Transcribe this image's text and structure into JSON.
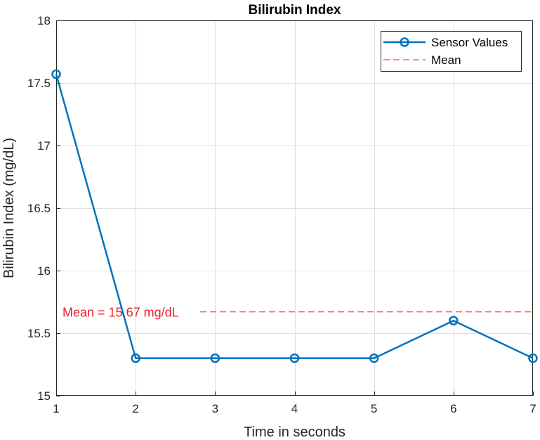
{
  "colors": {
    "series": "#0072bd",
    "mean": "#e8202a",
    "grid": "#dfdfdf",
    "axis": "#262626"
  },
  "chart_data": {
    "type": "line",
    "title": "Bilirubin Index",
    "xlabel": "Time in seconds",
    "ylabel": "Bilirubin Index (mg/dL)",
    "xlim": [
      1,
      7
    ],
    "ylim": [
      15,
      18
    ],
    "x_ticks": [
      1,
      2,
      3,
      4,
      5,
      6,
      7
    ],
    "y_ticks": [
      15,
      15.5,
      16,
      16.5,
      17,
      17.5,
      18
    ],
    "x_tick_labels": [
      "1",
      "2",
      "3",
      "4",
      "5",
      "6",
      "7"
    ],
    "y_tick_labels": [
      "15",
      "15.5",
      "16",
      "16.5",
      "17",
      "17.5",
      "18"
    ],
    "grid": true,
    "legend_position": "top-right",
    "series": [
      {
        "name": "Sensor Values",
        "x": [
          1,
          2,
          3,
          4,
          5,
          6,
          7
        ],
        "values": [
          17.57,
          15.3,
          15.3,
          15.3,
          15.3,
          15.6,
          15.3
        ],
        "style": "solid line with circle markers"
      },
      {
        "name": "Mean",
        "value": 15.67,
        "style": "dashed horizontal line"
      }
    ],
    "annotations": [
      {
        "text": "Mean = 15.67 mg/dL",
        "x": 1.08,
        "y": 15.67
      }
    ]
  }
}
